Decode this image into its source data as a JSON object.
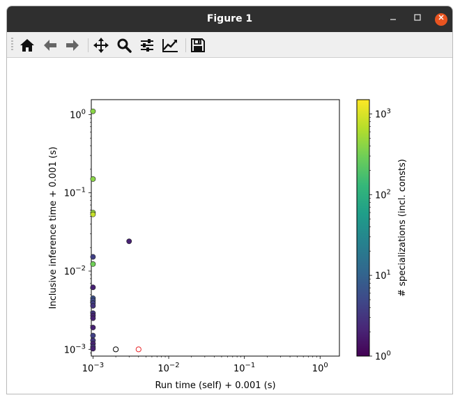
{
  "window": {
    "title": "Figure 1"
  },
  "toolbar": {
    "buttons": [
      {
        "name": "home",
        "icon": "home-icon"
      },
      {
        "name": "back",
        "icon": "arrow-left-icon"
      },
      {
        "name": "forward",
        "icon": "arrow-right-icon"
      },
      {
        "name": "pan",
        "icon": "move-icon"
      },
      {
        "name": "zoom",
        "icon": "magnifier-icon"
      },
      {
        "name": "configure-subplots",
        "icon": "sliders-icon"
      },
      {
        "name": "edit-axes",
        "icon": "line-chart-icon"
      },
      {
        "name": "save",
        "icon": "floppy-disk-icon"
      }
    ]
  },
  "chart_data": {
    "type": "scatter",
    "xlabel": "Run time (self) + 0.001 (s)",
    "ylabel": "Inclusive inference time + 0.001 (s)",
    "xscale": "log",
    "yscale": "log",
    "xlim": [
      0.00095,
      1.8
    ],
    "ylim": [
      0.00082,
      1.55
    ],
    "xticks": [
      {
        "value": 0.001,
        "label": "10^-3"
      },
      {
        "value": 0.01,
        "label": "10^-2"
      },
      {
        "value": 0.1,
        "label": "10^-1"
      },
      {
        "value": 1,
        "label": "10^0"
      }
    ],
    "yticks": [
      {
        "value": 0.001,
        "label": "10^-3"
      },
      {
        "value": 0.01,
        "label": "10^-2"
      },
      {
        "value": 0.1,
        "label": "10^-1"
      },
      {
        "value": 1,
        "label": "10^0"
      }
    ],
    "colorbar": {
      "label": "# specializations (incl. consts)",
      "colormap": "viridis",
      "scale": "log",
      "range": [
        1,
        1500
      ],
      "ticks": [
        {
          "value": 1,
          "label": "10^0"
        },
        {
          "value": 10,
          "label": "10^1"
        },
        {
          "value": 100,
          "label": "10^2"
        },
        {
          "value": 1000,
          "label": "10^3"
        }
      ]
    },
    "points": [
      {
        "x": 0.001,
        "y": 1.1,
        "c": 400
      },
      {
        "x": 0.001,
        "y": 0.15,
        "c": 400
      },
      {
        "x": 0.001,
        "y": 0.056,
        "c": 450
      },
      {
        "x": 0.001,
        "y": 0.053,
        "c": 800
      },
      {
        "x": 0.003,
        "y": 0.024,
        "c": 2
      },
      {
        "x": 0.001,
        "y": 0.0152,
        "c": 4
      },
      {
        "x": 0.001,
        "y": 0.0123,
        "c": 300
      },
      {
        "x": 0.001,
        "y": 0.0062,
        "c": 2
      },
      {
        "x": 0.001,
        "y": 0.0045,
        "c": 6
      },
      {
        "x": 0.001,
        "y": 0.0042,
        "c": 5
      },
      {
        "x": 0.001,
        "y": 0.0039,
        "c": 4
      },
      {
        "x": 0.001,
        "y": 0.0036,
        "c": 3
      },
      {
        "x": 0.001,
        "y": 0.0029,
        "c": 3
      },
      {
        "x": 0.001,
        "y": 0.0027,
        "c": 2
      },
      {
        "x": 0.001,
        "y": 0.0025,
        "c": 2
      },
      {
        "x": 0.001,
        "y": 0.0019,
        "c": 2
      },
      {
        "x": 0.001,
        "y": 0.0015,
        "c": 4
      },
      {
        "x": 0.001,
        "y": 0.0013,
        "c": 3
      },
      {
        "x": 0.001,
        "y": 0.00118,
        "c": 2
      },
      {
        "x": 0.001,
        "y": 0.00108,
        "c": 3
      },
      {
        "x": 0.001,
        "y": 0.00102,
        "c": 2
      }
    ],
    "hollow_points": [
      {
        "x": 0.002,
        "y": 0.001,
        "edge": "#000000"
      },
      {
        "x": 0.004,
        "y": 0.001,
        "edge": "#e8262a"
      }
    ]
  }
}
